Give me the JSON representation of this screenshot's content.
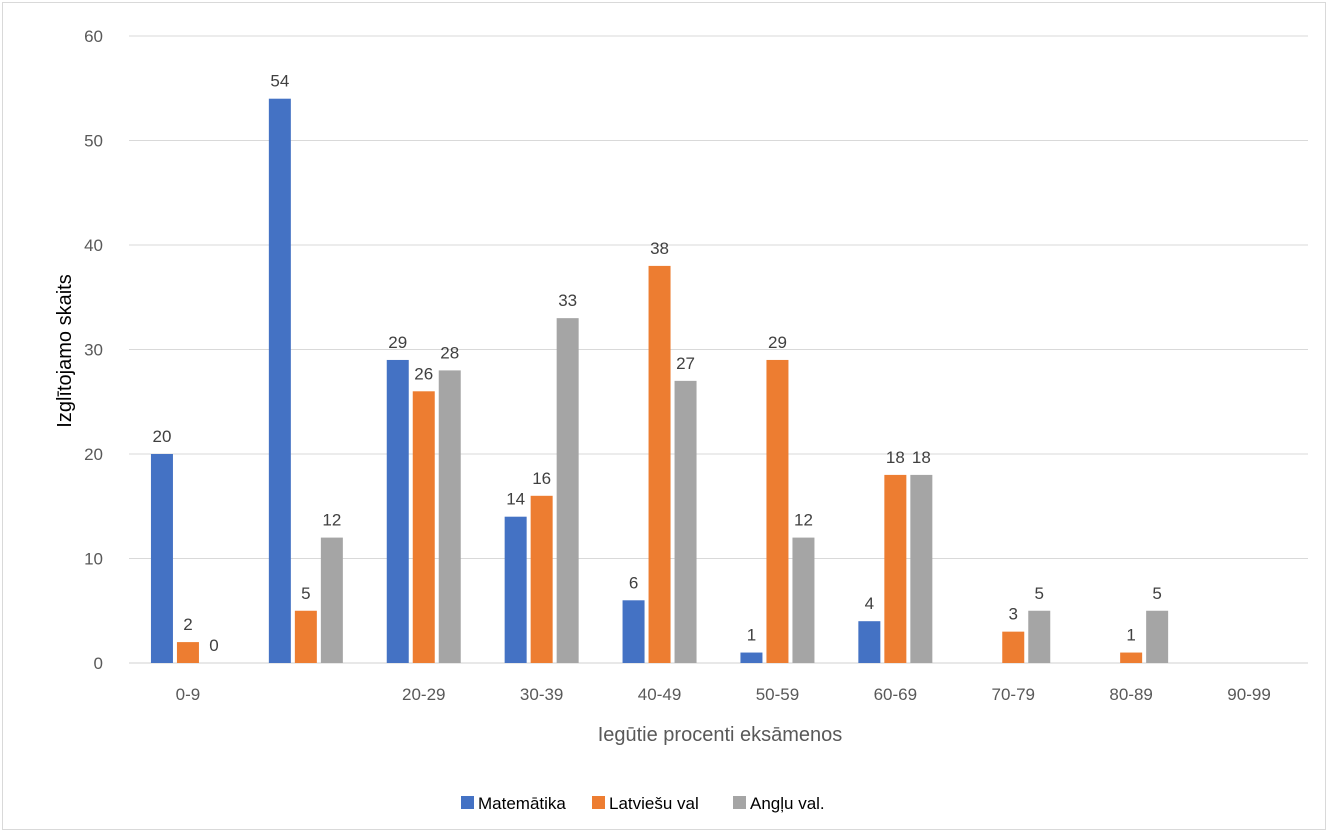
{
  "chart_data": {
    "type": "bar",
    "title": "",
    "xlabel": "Iegūtie procenti eksāmenos",
    "ylabel": "Izglītojamo skaits",
    "ylim": [
      0,
      60
    ],
    "yticks": [
      0,
      10,
      20,
      30,
      40,
      50,
      60
    ],
    "grid": true,
    "legend_position": "bottom",
    "categories": [
      "0-9",
      "",
      "20-29",
      "30-39",
      "40-49",
      "50-59",
      "60-69",
      "70-79",
      "80-89",
      "90-99"
    ],
    "series": [
      {
        "name": "Matemātika",
        "color": "#4472C4",
        "values": [
          20,
          54,
          29,
          14,
          6,
          1,
          4,
          null,
          null,
          null
        ]
      },
      {
        "name": "Latviešu val",
        "color": "#ED7D31",
        "values": [
          2,
          5,
          26,
          16,
          38,
          29,
          18,
          3,
          1,
          null
        ]
      },
      {
        "name": "Angļu val.",
        "color": "#A5A5A5",
        "values": [
          0,
          12,
          28,
          33,
          27,
          12,
          18,
          5,
          5,
          null
        ]
      }
    ]
  }
}
